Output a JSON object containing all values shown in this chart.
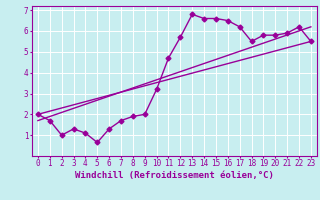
{
  "title": "",
  "xlabel": "Windchill (Refroidissement éolien,°C)",
  "bg_color": "#c8eef0",
  "line_color": "#990099",
  "grid_color": "#ffffff",
  "xlim": [
    -0.5,
    23.5
  ],
  "ylim": [
    0,
    7.2
  ],
  "xticks": [
    0,
    1,
    2,
    3,
    4,
    5,
    6,
    7,
    8,
    9,
    10,
    11,
    12,
    13,
    14,
    15,
    16,
    17,
    18,
    19,
    20,
    21,
    22,
    23
  ],
  "yticks": [
    1,
    2,
    3,
    4,
    5,
    6,
    7
  ],
  "data_x": [
    0,
    1,
    2,
    3,
    4,
    5,
    6,
    7,
    8,
    9,
    10,
    11,
    12,
    13,
    14,
    15,
    16,
    17,
    18,
    19,
    20,
    21,
    22,
    23
  ],
  "data_y": [
    2.0,
    1.7,
    1.0,
    1.3,
    1.1,
    0.65,
    1.3,
    1.7,
    1.9,
    2.0,
    3.2,
    4.7,
    5.7,
    6.8,
    6.6,
    6.6,
    6.5,
    6.2,
    5.5,
    5.8,
    5.8,
    5.9,
    6.2,
    5.5
  ],
  "line1_x": [
    0,
    23
  ],
  "line1_y": [
    2.0,
    5.5
  ],
  "line2_x": [
    0,
    23
  ],
  "line2_y": [
    1.7,
    6.2
  ],
  "marker_style": "D",
  "marker_size": 2.5,
  "line_width": 1.0,
  "xlabel_fontsize": 6.5,
  "tick_fontsize": 5.5
}
